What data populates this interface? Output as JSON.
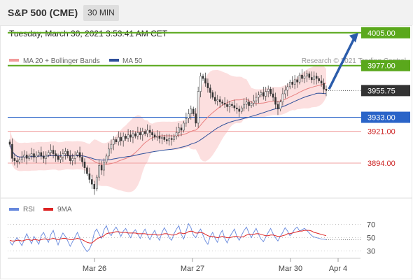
{
  "header": {
    "title": "S&P 500 (CME)",
    "interval": "30 MIN"
  },
  "timestamp": "Tuesday, March 30, 2021 3:53:41 AM CET",
  "copyright": "Research © 2021 Trading Central",
  "colors": {
    "resistance": "#5aa81c",
    "support": "#2a64c8",
    "minor": "#cc2222",
    "price_tag": "#333333",
    "candle_up": "#2e8b2e",
    "candle_down": "#b22222",
    "ma20": "#e88080",
    "ma50": "#2d4e9a",
    "bands_fill": "#fbd4d4",
    "rsi": "#6688dd",
    "rsi_ma": "#dd2222",
    "arrow": "#2b5cab"
  },
  "chart_data": [
    {
      "type": "candlestick",
      "legend": [
        "MA 20 + Bollinger Bands",
        "MA 50"
      ],
      "ylim": [
        3860,
        4015
      ],
      "x_ticks": [
        "Mar 26",
        "Mar 27",
        "Mar 30",
        "Apr 4"
      ],
      "levels": [
        {
          "label": "4005.00",
          "value": 4005.0,
          "kind": "resistance"
        },
        {
          "label": "3977.00",
          "value": 3977.0,
          "kind": "resistance"
        },
        {
          "label": "3955.75",
          "value": 3955.75,
          "kind": "current"
        },
        {
          "label": "3933.00",
          "value": 3933.0,
          "kind": "support"
        },
        {
          "label": "3921.00",
          "value": 3921.0,
          "kind": "minor"
        },
        {
          "label": "3894.00",
          "value": 3894.0,
          "kind": "minor"
        }
      ],
      "forecast_arrow": {
        "from": 3957,
        "to": 4005
      },
      "closes": [
        3910,
        3898,
        3896,
        3895,
        3897,
        3899,
        3901,
        3898,
        3900,
        3902,
        3899,
        3901,
        3903,
        3900,
        3898,
        3901,
        3903,
        3905,
        3902,
        3900,
        3897,
        3899,
        3902,
        3904,
        3900,
        3896,
        3898,
        3901,
        3903,
        3899,
        3895,
        3890,
        3885,
        3880,
        3876,
        3872,
        3882,
        3892,
        3888,
        3895,
        3900,
        3906,
        3910,
        3914,
        3912,
        3916,
        3913,
        3917,
        3915,
        3918,
        3916,
        3919,
        3917,
        3920,
        3918,
        3921,
        3919,
        3922,
        3920,
        3918,
        3916,
        3917,
        3915,
        3916,
        3914,
        3913,
        3915,
        3914,
        3917,
        3920,
        3924,
        3922,
        3928,
        3932,
        3936,
        3940,
        3936,
        3928,
        3955,
        3968,
        3966,
        3962,
        3958,
        3954,
        3950,
        3947,
        3948,
        3946,
        3945,
        3944,
        3942,
        3944,
        3943,
        3941,
        3940,
        3938,
        3941,
        3944,
        3946,
        3943,
        3945,
        3947,
        3950,
        3952,
        3954,
        3951,
        3955,
        3957,
        3953,
        3950,
        3944,
        3940,
        3946,
        3953,
        3956,
        3959,
        3963,
        3961,
        3965,
        3963,
        3969,
        3966,
        3968,
        3970,
        3967,
        3965,
        3968,
        3966,
        3964,
        3962,
        3957,
        3956
      ]
    },
    {
      "type": "line",
      "legend": [
        "RSI",
        "9MA"
      ],
      "ylim": [
        20,
        78
      ],
      "y_ticks": [
        "70",
        "50",
        "30"
      ],
      "rsi": [
        44,
        39,
        45,
        50,
        44,
        38,
        47,
        56,
        48,
        41,
        52,
        46,
        40,
        53,
        58,
        49,
        43,
        55,
        61,
        48,
        39,
        50,
        57,
        52,
        45,
        37,
        44,
        51,
        58,
        49,
        40,
        34,
        29,
        33,
        41,
        58,
        63,
        55,
        49,
        62,
        68,
        57,
        53,
        61,
        66,
        59,
        52,
        60,
        64,
        56,
        50,
        58,
        62,
        55,
        49,
        57,
        63,
        54,
        47,
        55,
        61,
        52,
        46,
        58,
        65,
        58,
        50,
        46,
        56,
        63,
        68,
        55,
        48,
        60,
        71,
        65,
        54,
        50,
        58,
        63,
        54,
        45,
        40,
        52,
        58,
        49,
        43,
        55,
        61,
        49,
        42,
        51,
        57,
        63,
        52,
        46,
        54,
        61,
        66,
        57,
        50,
        58,
        64,
        55,
        48,
        44,
        51,
        58,
        64,
        56,
        50,
        45,
        52,
        58,
        65,
        60,
        53,
        57,
        63,
        66,
        60,
        62,
        64,
        61,
        57,
        53,
        51,
        50,
        49,
        48,
        48,
        47
      ],
      "rsi_ma": [
        46,
        45,
        45,
        46,
        46,
        45,
        46,
        47,
        47,
        46,
        47,
        47,
        46,
        47,
        48,
        48,
        47,
        48,
        49,
        48,
        47,
        48,
        49,
        49,
        48,
        47,
        47,
        48,
        49,
        48,
        47,
        45,
        43,
        42,
        42,
        45,
        48,
        50,
        51,
        53,
        56,
        57,
        57,
        58,
        59,
        59,
        58,
        58,
        58,
        57,
        57,
        57,
        57,
        56,
        56,
        56,
        56,
        55,
        55,
        55,
        55,
        54,
        54,
        55,
        56,
        56,
        55,
        54,
        54,
        55,
        57,
        57,
        56,
        57,
        59,
        60,
        59,
        57,
        57,
        58,
        57,
        55,
        53,
        52,
        52,
        51,
        50,
        51,
        52,
        51,
        50,
        50,
        51,
        52,
        52,
        51,
        51,
        52,
        54,
        55,
        55,
        55,
        56,
        56,
        55,
        54,
        53,
        53,
        54,
        54,
        53,
        52,
        52,
        53,
        54,
        56,
        56,
        57,
        58,
        59,
        60,
        60,
        61,
        61,
        61,
        60,
        58,
        57,
        56,
        55,
        54,
        53
      ]
    }
  ]
}
